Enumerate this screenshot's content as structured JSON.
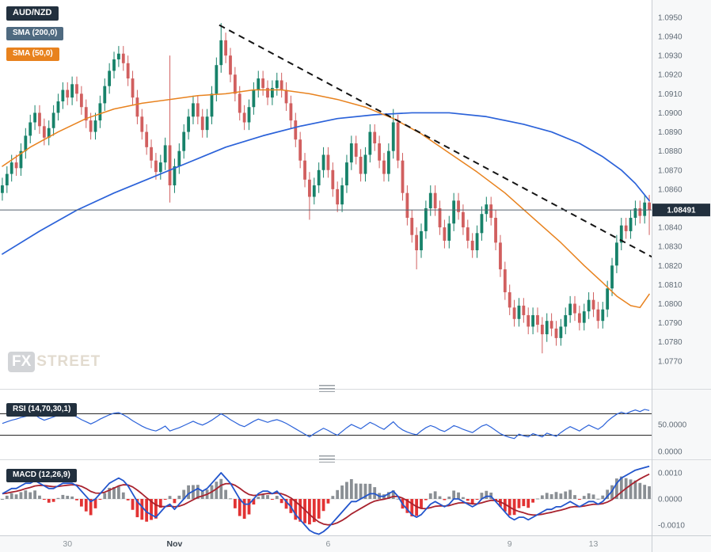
{
  "legend": {
    "symbol": "AUD/NZD",
    "sma200": "SMA (200,0)",
    "sma50": "SMA (50,0)"
  },
  "rsi_panel": {
    "label": "RSI (14,70,30,1)",
    "axis_labels": [
      {
        "text": "50.0000",
        "value": 50
      },
      {
        "text": "0.0000",
        "value": 0
      }
    ]
  },
  "macd_panel": {
    "label": "MACD (12,26,9)",
    "axis_labels": [
      {
        "text": "0.0010",
        "value": 0.001
      },
      {
        "text": "0.0000",
        "value": 0
      },
      {
        "text": "-0.0010",
        "value": -0.001
      }
    ]
  },
  "watermark": {
    "fx": "FX",
    "street": "STREET"
  },
  "price_axis": {
    "labels": [
      "1.0950",
      "1.0940",
      "1.0930",
      "1.0920",
      "1.0910",
      "1.0900",
      "1.0890",
      "1.0880",
      "1.0870",
      "1.0860",
      "1.0850",
      "1.0840",
      "1.0830",
      "1.0820",
      "1.0810",
      "1.0800",
      "1.0790",
      "1.0780",
      "1.0770"
    ],
    "current_price_label": "1.08491"
  },
  "time_axis": {
    "labels": [
      {
        "text": "30",
        "index": 14,
        "bold": false
      },
      {
        "text": "Nov",
        "index": 37,
        "bold": true
      },
      {
        "text": "6",
        "index": 70,
        "bold": false
      },
      {
        "text": "9",
        "index": 109,
        "bold": false
      },
      {
        "text": "13",
        "index": 127,
        "bold": false
      }
    ]
  },
  "colors": {
    "background": "#ffffff",
    "axis_bg": "#f7f8f9",
    "axis_border": "#c9ced3",
    "axis_text": "#5f6a75",
    "up": "#17826a",
    "down": "#d15f5f",
    "sma200_line": "#2b62d9",
    "sma50_line": "#e8821e",
    "trendline": "#141414",
    "price_line": "#53626e",
    "price_badge_bg": "#22303e",
    "badge_dark": "#22303e",
    "badge_sma200": "#4f6a80",
    "badge_sma50": "#e8821e",
    "rsi_line": "#2b62d9",
    "band_line": "#1a1a1a",
    "macd_line": "#2255cc",
    "signal_line": "#a8222e",
    "hist_pos": "#8a8f94",
    "hist_neg": "#e23333",
    "divider": "#d7dadd",
    "watermark_box": "#a7abb0",
    "watermark_text": "#c7b9a0"
  },
  "chart_data": {
    "type": "candlestick",
    "title": "AUD/NZD with SMA(200), SMA(50), RSI(14,70,30,1), MACD(12,26,9)",
    "symbol": "AUD/NZD",
    "current_price": 1.08491,
    "price_range": [
      1.07554,
      1.09591
    ],
    "candles": [
      [
        1.0858,
        1.0866,
        1.0854,
        1.0862
      ],
      [
        1.0862,
        1.0872,
        1.0858,
        1.0868
      ],
      [
        1.0868,
        1.0878,
        1.0864,
        1.0874
      ],
      [
        1.0874,
        1.0878,
        1.0867,
        1.0871
      ],
      [
        1.0871,
        1.0884,
        1.0867,
        1.088
      ],
      [
        1.088,
        1.0892,
        1.0876,
        1.0888
      ],
      [
        1.0888,
        1.0899,
        1.0884,
        1.0895
      ],
      [
        1.0895,
        1.0904,
        1.0891,
        1.09
      ],
      [
        1.09,
        1.0904,
        1.0889,
        1.0893
      ],
      [
        1.0893,
        1.0897,
        1.0883,
        1.0887
      ],
      [
        1.0887,
        1.0896,
        1.0883,
        1.0892
      ],
      [
        1.0892,
        1.0904,
        1.0888,
        1.09
      ],
      [
        1.09,
        1.091,
        1.0896,
        1.0906
      ],
      [
        1.0906,
        1.0916,
        1.0902,
        1.0912
      ],
      [
        1.0912,
        1.0916,
        1.0904,
        1.0908
      ],
      [
        1.0908,
        1.0919,
        1.0904,
        1.0915
      ],
      [
        1.0915,
        1.0919,
        1.0906,
        1.091
      ],
      [
        1.091,
        1.0914,
        1.0899,
        1.0903
      ],
      [
        1.0903,
        1.0907,
        1.0892,
        1.0896
      ],
      [
        1.0896,
        1.09,
        1.0886,
        1.089
      ],
      [
        1.089,
        1.09,
        1.0886,
        1.0896
      ],
      [
        1.0896,
        1.0909,
        1.0892,
        1.0905
      ],
      [
        1.0905,
        1.0918,
        1.0901,
        1.0914
      ],
      [
        1.0914,
        1.0926,
        1.091,
        1.0922
      ],
      [
        1.0922,
        1.0932,
        1.0918,
        1.0928
      ],
      [
        1.0928,
        1.0935,
        1.0924,
        1.0931
      ],
      [
        1.0931,
        1.0935,
        1.0922,
        1.0926
      ],
      [
        1.0926,
        1.093,
        1.0914,
        1.0918
      ],
      [
        1.0918,
        1.0922,
        1.0904,
        1.0908
      ],
      [
        1.0908,
        1.0912,
        1.0894,
        1.0898
      ],
      [
        1.0898,
        1.0902,
        1.0886,
        1.089
      ],
      [
        1.089,
        1.0894,
        1.0878,
        1.0882
      ],
      [
        1.0882,
        1.0886,
        1.0871,
        1.0875
      ],
      [
        1.0875,
        1.0879,
        1.0865,
        1.0869
      ],
      [
        1.0869,
        1.0878,
        1.0865,
        1.0874
      ],
      [
        1.0874,
        1.0887,
        1.087,
        1.0883
      ],
      [
        1.0883,
        1.093,
        1.0853,
        1.0862
      ],
      [
        1.0862,
        1.0876,
        1.0858,
        1.0872
      ],
      [
        1.0872,
        1.0884,
        1.0868,
        1.088
      ],
      [
        1.088,
        1.0894,
        1.0876,
        1.089
      ],
      [
        1.089,
        1.0902,
        1.0886,
        1.0898
      ],
      [
        1.0898,
        1.0909,
        1.0894,
        1.0905
      ],
      [
        1.0905,
        1.0909,
        1.0894,
        1.0898
      ],
      [
        1.0898,
        1.0902,
        1.0887,
        1.0891
      ],
      [
        1.0891,
        1.0902,
        1.0887,
        1.0898
      ],
      [
        1.0898,
        1.0914,
        1.0894,
        1.091
      ],
      [
        1.091,
        1.0929,
        1.0906,
        1.0925
      ],
      [
        1.0925,
        1.0947,
        1.0921,
        1.0938
      ],
      [
        1.0938,
        1.0942,
        1.0926,
        1.093
      ],
      [
        1.093,
        1.0934,
        1.0916,
        1.092
      ],
      [
        1.092,
        1.0924,
        1.0906,
        1.091
      ],
      [
        1.091,
        1.0914,
        1.0896,
        1.09
      ],
      [
        1.09,
        1.0904,
        1.0891,
        1.0895
      ],
      [
        1.0895,
        1.0907,
        1.0891,
        1.0903
      ],
      [
        1.0903,
        1.0916,
        1.0899,
        1.0912
      ],
      [
        1.0912,
        1.0922,
        1.0908,
        1.0918
      ],
      [
        1.0918,
        1.0922,
        1.0909,
        1.0913
      ],
      [
        1.0913,
        1.0917,
        1.0904,
        1.0908
      ],
      [
        1.0908,
        1.0917,
        1.0904,
        1.0913
      ],
      [
        1.0913,
        1.0921,
        1.0909,
        1.0917
      ],
      [
        1.0917,
        1.0921,
        1.0908,
        1.0912
      ],
      [
        1.0912,
        1.0916,
        1.0901,
        1.0905
      ],
      [
        1.0905,
        1.0909,
        1.0892,
        1.0896
      ],
      [
        1.0896,
        1.09,
        1.0882,
        1.0886
      ],
      [
        1.0886,
        1.089,
        1.0871,
        1.0875
      ],
      [
        1.0875,
        1.0879,
        1.0861,
        1.0865
      ],
      [
        1.0865,
        1.0869,
        1.0844,
        1.0856
      ],
      [
        1.0856,
        1.0866,
        1.0852,
        1.0862
      ],
      [
        1.0862,
        1.0874,
        1.0858,
        1.087
      ],
      [
        1.087,
        1.0882,
        1.0866,
        1.0878
      ],
      [
        1.0878,
        1.0882,
        1.0866,
        1.087
      ],
      [
        1.087,
        1.0874,
        1.0856,
        1.086
      ],
      [
        1.086,
        1.0864,
        1.0848,
        1.0852
      ],
      [
        1.0852,
        1.0866,
        1.0848,
        1.0862
      ],
      [
        1.0862,
        1.0878,
        1.0858,
        1.0874
      ],
      [
        1.0874,
        1.0888,
        1.087,
        1.0884
      ],
      [
        1.0884,
        1.0888,
        1.0873,
        1.0877
      ],
      [
        1.0877,
        1.0881,
        1.0864,
        1.0868
      ],
      [
        1.0868,
        1.0882,
        1.0864,
        1.0878
      ],
      [
        1.0878,
        1.0894,
        1.0874,
        1.089
      ],
      [
        1.089,
        1.0894,
        1.088,
        1.0884
      ],
      [
        1.0884,
        1.0888,
        1.0871,
        1.0875
      ],
      [
        1.0875,
        1.0879,
        1.0864,
        1.0868
      ],
      [
        1.0868,
        1.0884,
        1.0864,
        1.088
      ],
      [
        1.088,
        1.0902,
        1.0876,
        1.0895
      ],
      [
        1.0895,
        1.0899,
        1.0871,
        1.0875
      ],
      [
        1.0875,
        1.0879,
        1.0854,
        1.0858
      ],
      [
        1.0858,
        1.0862,
        1.0841,
        1.0845
      ],
      [
        1.0845,
        1.0849,
        1.0832,
        1.0836
      ],
      [
        1.0836,
        1.084,
        1.0818,
        1.0828
      ],
      [
        1.0828,
        1.0842,
        1.0824,
        1.0838
      ],
      [
        1.0838,
        1.0854,
        1.0834,
        1.085
      ],
      [
        1.085,
        1.0862,
        1.0846,
        1.0858
      ],
      [
        1.0858,
        1.0862,
        1.0846,
        1.085
      ],
      [
        1.085,
        1.0854,
        1.0836,
        1.084
      ],
      [
        1.084,
        1.0844,
        1.0829,
        1.0833
      ],
      [
        1.0833,
        1.0846,
        1.0829,
        1.0842
      ],
      [
        1.0842,
        1.0858,
        1.0838,
        1.0854
      ],
      [
        1.0854,
        1.0858,
        1.0844,
        1.0848
      ],
      [
        1.0848,
        1.0852,
        1.0836,
        1.084
      ],
      [
        1.084,
        1.0844,
        1.0829,
        1.0833
      ],
      [
        1.0833,
        1.0837,
        1.0824,
        1.0828
      ],
      [
        1.0828,
        1.0841,
        1.0824,
        1.0837
      ],
      [
        1.0837,
        1.0851,
        1.0833,
        1.0847
      ],
      [
        1.0847,
        1.0856,
        1.0843,
        1.0852
      ],
      [
        1.0852,
        1.0856,
        1.0841,
        1.0845
      ],
      [
        1.0845,
        1.0849,
        1.0828,
        1.0832
      ],
      [
        1.0832,
        1.0836,
        1.0814,
        1.0818
      ],
      [
        1.0818,
        1.0822,
        1.0802,
        1.0806
      ],
      [
        1.0806,
        1.081,
        1.0794,
        1.0798
      ],
      [
        1.0798,
        1.0802,
        1.0788,
        1.0792
      ],
      [
        1.0792,
        1.0803,
        1.0788,
        1.0799
      ],
      [
        1.0799,
        1.0803,
        1.079,
        1.0794
      ],
      [
        1.0794,
        1.0798,
        1.0784,
        1.0788
      ],
      [
        1.0788,
        1.0798,
        1.0784,
        1.0794
      ],
      [
        1.0794,
        1.0798,
        1.0785,
        1.0789
      ],
      [
        1.0789,
        1.0793,
        1.0774,
        1.0784
      ],
      [
        1.0784,
        1.0795,
        1.078,
        1.0791
      ],
      [
        1.0791,
        1.0795,
        1.0783,
        1.0787
      ],
      [
        1.0787,
        1.0791,
        1.0778,
        1.0782
      ],
      [
        1.0782,
        1.0792,
        1.0778,
        1.0788
      ],
      [
        1.0788,
        1.0798,
        1.0784,
        1.0794
      ],
      [
        1.0794,
        1.0804,
        1.079,
        1.08
      ],
      [
        1.08,
        1.0804,
        1.0791,
        1.0795
      ],
      [
        1.0795,
        1.0799,
        1.0786,
        1.079
      ],
      [
        1.079,
        1.08,
        1.0786,
        1.0796
      ],
      [
        1.0796,
        1.0806,
        1.0792,
        1.0802
      ],
      [
        1.0802,
        1.0806,
        1.0793,
        1.0797
      ],
      [
        1.0797,
        1.0801,
        1.0787,
        1.0791
      ],
      [
        1.0791,
        1.0801,
        1.0787,
        1.0797
      ],
      [
        1.0797,
        1.0812,
        1.0793,
        1.0808
      ],
      [
        1.0808,
        1.0824,
        1.0804,
        1.082
      ],
      [
        1.082,
        1.0836,
        1.0816,
        1.0832
      ],
      [
        1.0832,
        1.0845,
        1.0828,
        1.0841
      ],
      [
        1.0841,
        1.0845,
        1.0834,
        1.0838
      ],
      [
        1.0838,
        1.0849,
        1.0834,
        1.0845
      ],
      [
        1.0845,
        1.0854,
        1.0841,
        1.085
      ],
      [
        1.085,
        1.0854,
        1.0842,
        1.0846
      ],
      [
        1.0846,
        1.0857,
        1.0842,
        1.0853
      ],
      [
        1.0853,
        1.0857,
        1.0836,
        1.08491
      ]
    ],
    "overlays": {
      "sma200": [
        [
          0,
          1.0826
        ],
        [
          8,
          1.0838
        ],
        [
          16,
          1.0849
        ],
        [
          24,
          1.0858
        ],
        [
          32,
          1.0866
        ],
        [
          40,
          1.0874
        ],
        [
          48,
          1.0882
        ],
        [
          56,
          1.0888
        ],
        [
          64,
          1.0893
        ],
        [
          72,
          1.0897
        ],
        [
          80,
          1.0899
        ],
        [
          88,
          1.09
        ],
        [
          96,
          1.09
        ],
        [
          104,
          1.0898
        ],
        [
          112,
          1.0894
        ],
        [
          118,
          1.089
        ],
        [
          124,
          1.0884
        ],
        [
          129,
          1.0877
        ],
        [
          133,
          1.087
        ],
        [
          136,
          1.0863
        ],
        [
          139,
          1.0854
        ]
      ],
      "sma50": [
        [
          0,
          1.0872
        ],
        [
          6,
          1.0882
        ],
        [
          12,
          1.089
        ],
        [
          18,
          1.0897
        ],
        [
          24,
          1.0902
        ],
        [
          30,
          1.0905
        ],
        [
          36,
          1.0907
        ],
        [
          42,
          1.0909
        ],
        [
          48,
          1.091
        ],
        [
          54,
          1.0912
        ],
        [
          60,
          1.0912
        ],
        [
          66,
          1.091
        ],
        [
          72,
          1.0907
        ],
        [
          78,
          1.0903
        ],
        [
          84,
          1.0897
        ],
        [
          90,
          1.0889
        ],
        [
          96,
          1.0879
        ],
        [
          102,
          1.0869
        ],
        [
          108,
          1.0858
        ],
        [
          114,
          1.0845
        ],
        [
          120,
          1.0832
        ],
        [
          125,
          1.082
        ],
        [
          129,
          1.0811
        ],
        [
          132,
          1.0804
        ],
        [
          135,
          1.0799
        ],
        [
          137,
          1.0798
        ],
        [
          139,
          1.0805
        ]
      ],
      "trendline": {
        "from": [
          46.6,
          1.0946
        ],
        "to": [
          141.5,
          1.0822
        ],
        "style": "dashed"
      }
    },
    "rsi": {
      "upper": 70,
      "lower": 30,
      "range": [
        0,
        100
      ],
      "values": [
        52,
        55,
        58,
        60,
        63,
        65,
        67,
        68,
        62,
        58,
        61,
        64,
        67,
        69,
        66,
        68,
        64,
        59,
        55,
        51,
        55,
        60,
        64,
        68,
        71,
        72,
        68,
        63,
        57,
        52,
        47,
        43,
        40,
        38,
        42,
        47,
        38,
        41,
        44,
        48,
        52,
        56,
        52,
        49,
        53,
        58,
        64,
        70,
        65,
        59,
        54,
        49,
        46,
        51,
        56,
        60,
        57,
        54,
        57,
        59,
        56,
        52,
        47,
        42,
        37,
        32,
        27,
        33,
        38,
        43,
        39,
        34,
        30,
        37,
        44,
        50,
        46,
        42,
        48,
        54,
        50,
        45,
        41,
        48,
        55,
        46,
        40,
        36,
        33,
        31,
        38,
        44,
        48,
        45,
        40,
        37,
        42,
        48,
        45,
        41,
        38,
        35,
        41,
        47,
        50,
        45,
        39,
        33,
        29,
        26,
        24,
        32,
        29,
        27,
        33,
        30,
        27,
        34,
        31,
        28,
        35,
        41,
        46,
        42,
        38,
        44,
        49,
        45,
        41,
        47,
        56,
        63,
        69,
        73,
        70,
        74,
        77,
        74,
        78,
        76
      ]
    },
    "macd": {
      "unit": 0.0001,
      "range": [
        -0.0014,
        0.0014
      ],
      "signal_k": 0.22,
      "hist_scale": 1.6,
      "values": [
        2,
        3,
        4,
        4,
        5,
        6,
        6,
        7,
        6,
        5,
        4,
        4,
        5,
        6,
        6,
        6,
        5,
        3,
        1,
        -1,
        0,
        2,
        4,
        6,
        7,
        8,
        7,
        5,
        2,
        -1,
        -3,
        -5,
        -6,
        -7,
        -5,
        -3,
        -2,
        -4,
        -2,
        0,
        2,
        3,
        4,
        3,
        4,
        6,
        8,
        10,
        8,
        6,
        3,
        0,
        -2,
        -2,
        0,
        2,
        3,
        3,
        2,
        3,
        1,
        -1,
        -3,
        -6,
        -8,
        -10,
        -12,
        -13,
        -13.5,
        -12.5,
        -11,
        -9,
        -7,
        -5,
        -3,
        -1,
        -1,
        0,
        1,
        2,
        2,
        1,
        1,
        2,
        3,
        1,
        -2,
        -4,
        -6,
        -7,
        -6,
        -4,
        -2,
        -1,
        -2,
        -3,
        -2,
        0,
        0,
        -1,
        -2,
        -3,
        -2,
        0,
        1,
        1,
        -1,
        -3,
        -5,
        -7,
        -8,
        -7,
        -7,
        -8,
        -7,
        -6,
        -5,
        -4,
        -4,
        -3,
        -3,
        -2,
        -1,
        -2,
        -3,
        -2,
        -1,
        -1,
        -2,
        -1,
        1,
        3,
        6,
        8,
        9,
        10,
        11,
        11.5,
        12,
        12.5
      ]
    }
  }
}
